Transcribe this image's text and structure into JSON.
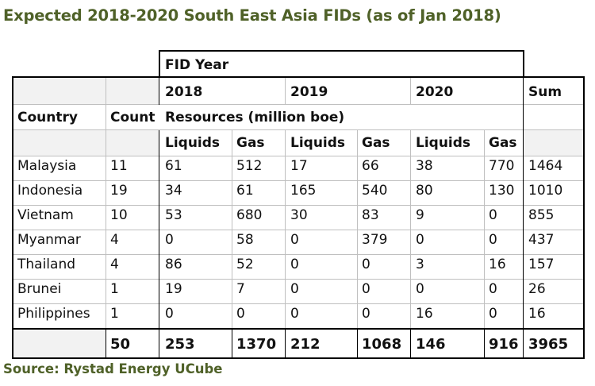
{
  "title": "Expected 2018-2020 South East Asia FIDs (as of Jan 2018)",
  "source": "Source: Rystad Energy UCube",
  "headers": {
    "fid_year": "FID Year",
    "years": [
      "2018",
      "2019",
      "2020"
    ],
    "sum": "Sum",
    "country": "Country",
    "count": "Count",
    "resources": "Resources (million boe)",
    "sub": [
      "Liquids",
      "Gas",
      "Liquids",
      "Gas",
      "Liquids",
      "Gas"
    ]
  },
  "rows": [
    {
      "country": "Malaysia",
      "count": "11",
      "vals": [
        "61",
        "512",
        "17",
        "66",
        "38",
        "770"
      ],
      "sum": "1464"
    },
    {
      "country": "Indonesia",
      "count": "19",
      "vals": [
        "34",
        "61",
        "165",
        "540",
        "80",
        "130"
      ],
      "sum": "1010"
    },
    {
      "country": "Vietnam",
      "count": "10",
      "vals": [
        "53",
        "680",
        "30",
        "83",
        "9",
        "0"
      ],
      "sum": "855"
    },
    {
      "country": "Myanmar",
      "count": "4",
      "vals": [
        "0",
        "58",
        "0",
        "379",
        "0",
        "0"
      ],
      "sum": "437"
    },
    {
      "country": "Thailand",
      "count": "4",
      "vals": [
        "86",
        "52",
        "0",
        "0",
        "3",
        "16"
      ],
      "sum": "157"
    },
    {
      "country": "Brunei",
      "count": "1",
      "vals": [
        "19",
        "7",
        "0",
        "0",
        "0",
        "0"
      ],
      "sum": "26"
    },
    {
      "country": "Philippines",
      "count": "1",
      "vals": [
        "0",
        "0",
        "0",
        "0",
        "16",
        "0"
      ],
      "sum": "16"
    }
  ],
  "totals": {
    "count": "50",
    "vals": [
      "253",
      "1370",
      "212",
      "1068",
      "146",
      "916"
    ],
    "sum": "3965"
  }
}
